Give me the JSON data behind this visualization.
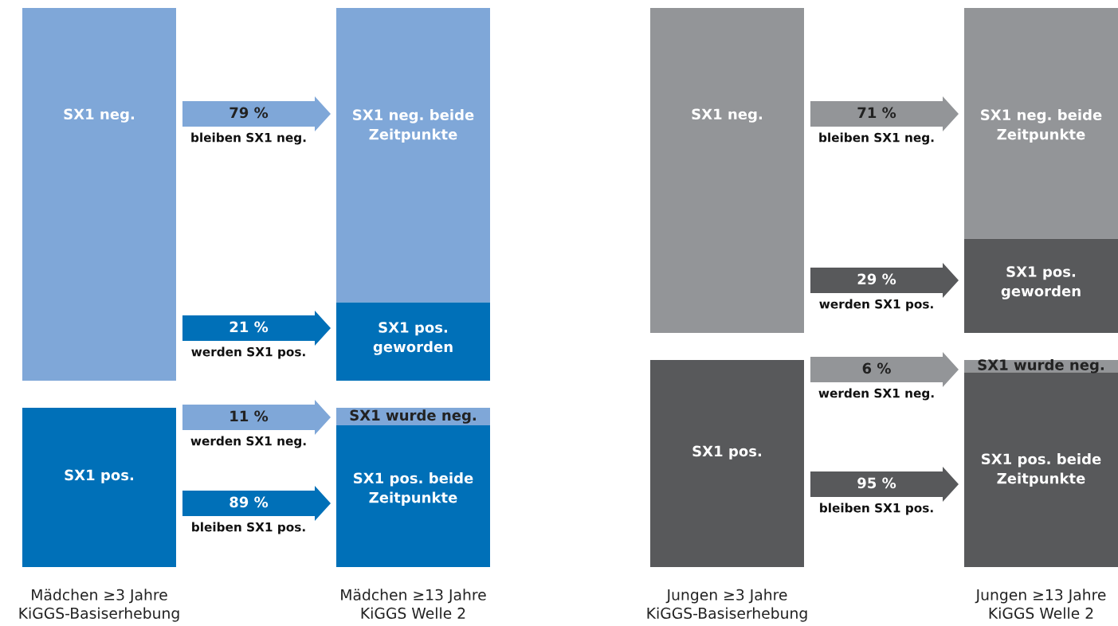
{
  "chart_data": [
    {
      "type": "other",
      "categories": [
        "bleiben SX1 neg.",
        "werden SX1 pos.",
        "werden SX1 neg.",
        "bleiben SX1 pos."
      ],
      "values": [
        79,
        21,
        11,
        89
      ],
      "value_labels": [
        "79 %",
        "21 %",
        "11 %",
        "89 %"
      ],
      "colors": [
        "#7fa7d8",
        "#0070b8",
        "#7fa7d8",
        "#0070b8"
      ],
      "annotations": [
        "SX1 neg.",
        "SX1 pos.",
        "SX1 neg. beide\nZeitpunkte",
        "SX1 pos.\ngeworden",
        "SX1 wurde neg.",
        "SX1 pos. beide\nZeitpunkte",
        "Mädchen ≥3 Jahre\nKiGGS-Basiserhebung",
        "Mädchen ≥13 Jahre\nKiGGS Welle 2"
      ]
    },
    {
      "type": "other",
      "categories": [
        "bleiben SX1 neg.",
        "werden SX1 pos.",
        "werden SX1 neg.",
        "bleiben SX1 pos."
      ],
      "values": [
        71,
        29,
        6,
        95
      ],
      "value_labels": [
        "71 %",
        "29 %",
        "6 %",
        "95 %"
      ],
      "colors": [
        "#939598",
        "#58595b",
        "#939598",
        "#58595b"
      ],
      "annotations": [
        "SX1 neg.",
        "SX1 pos.",
        "SX1 neg. beide\nZeitpunkte",
        "SX1 pos.\ngeworden",
        "SX1 wurde neg.",
        "SX1 pos. beide\nZeitpunkte",
        "Jungen ≥3 Jahre\nKiGGS-Basiserhebung",
        "Jungen ≥13 Jahre\nKiGGS Welle 2"
      ]
    }
  ]
}
